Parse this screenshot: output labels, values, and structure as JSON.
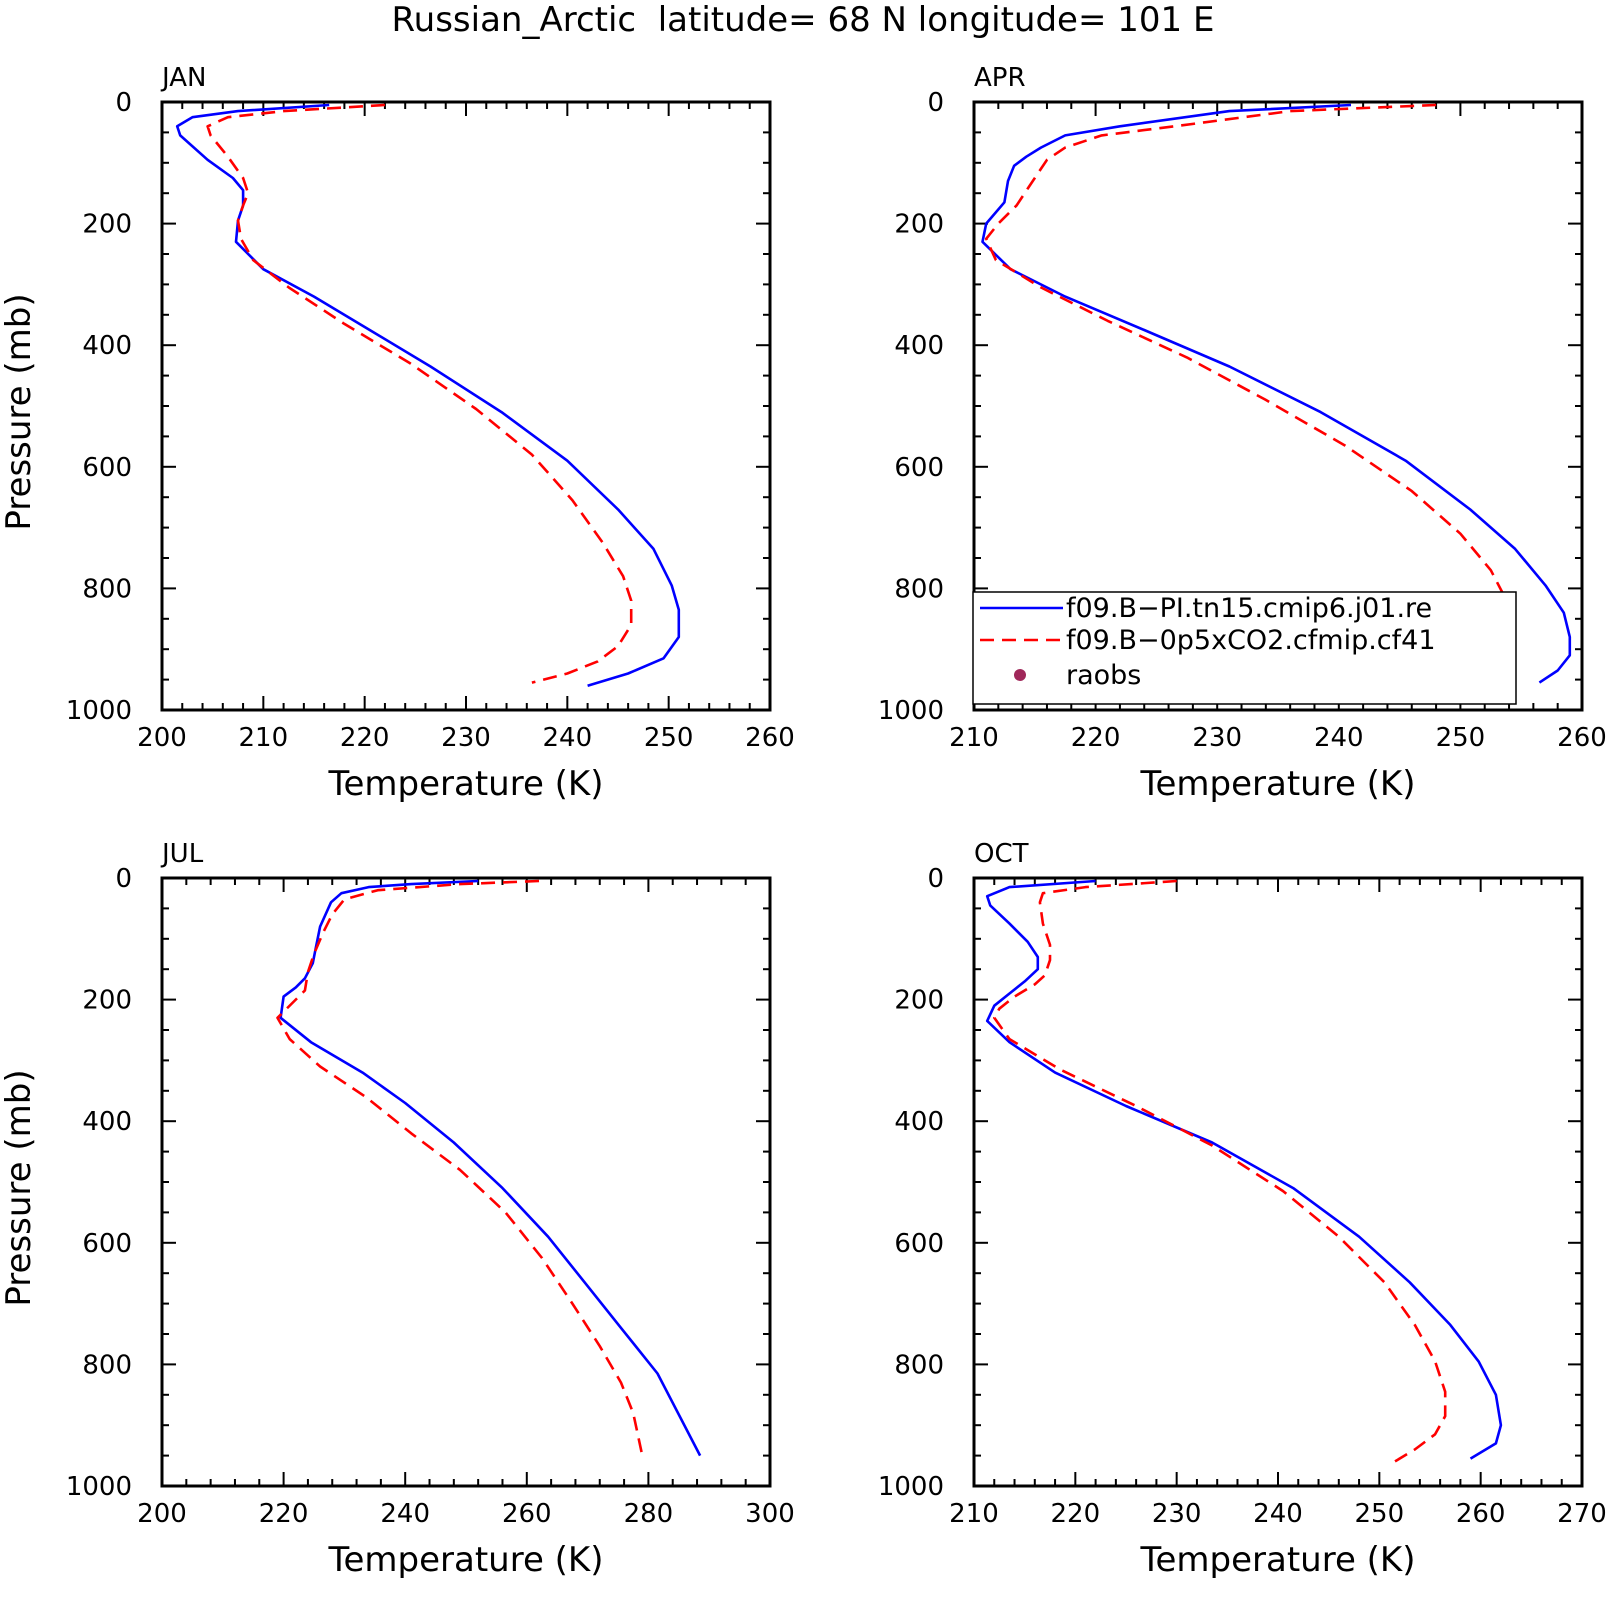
{
  "title": "Russian_Arctic  latitude= 68 N longitude= 101 E",
  "colors": {
    "series_1": "#0000ff",
    "series_2": "#ff0000",
    "raobs": "#a0285a",
    "axes": "#000000"
  },
  "legend": {
    "placement": "inside APR panel, lower-left",
    "entries": [
      {
        "label": "f09.B−PI.tn15.cmip6.j01.re",
        "style": "solid",
        "color": "#0000ff"
      },
      {
        "label": "f09.B−0p5xCO2.cfmip.cf41",
        "style": "dashed",
        "color": "#ff0000"
      },
      {
        "label": "raobs",
        "style": "marker",
        "color": "#a0285a"
      }
    ]
  },
  "chart_data": [
    {
      "type": "line",
      "panel": "JAN",
      "xlabel": "Temperature (K)",
      "ylabel": "Pressure (mb)",
      "xlim": [
        200,
        260
      ],
      "ylim": [
        0,
        1000
      ],
      "y_inverted": true,
      "xticks": [
        200,
        210,
        220,
        230,
        240,
        250,
        260
      ],
      "yticks": [
        0,
        200,
        400,
        600,
        800,
        1000
      ],
      "series": [
        {
          "name": "f09.B−PI.tn15.cmip6.j01.re",
          "style": "solid",
          "x": [
            216.5,
            207.5,
            203.0,
            201.5,
            201.8,
            204.5,
            207.0,
            208.0,
            208.0,
            207.5,
            207.3,
            210.0,
            215.0,
            220.5,
            226.5,
            233.5,
            240.0,
            245.0,
            248.5,
            250.3,
            251.0,
            251.0,
            249.5,
            246.0,
            242.0
          ],
          "y": [
            5,
            15,
            25,
            40,
            55,
            95,
            125,
            145,
            170,
            195,
            230,
            275,
            320,
            375,
            435,
            510,
            590,
            670,
            735,
            795,
            835,
            880,
            915,
            940,
            960
          ]
        },
        {
          "name": "f09.B−0p5xCO2.cfmip.cf41",
          "style": "dashed",
          "x": [
            222.0,
            212.0,
            206.5,
            204.5,
            204.8,
            206.5,
            208.0,
            208.5,
            208.0,
            207.5,
            207.8,
            209.0,
            212.5,
            218.0,
            224.5,
            231.0,
            236.5,
            240.5,
            243.5,
            245.5,
            246.3,
            246.3,
            245.0,
            243.0,
            240.0,
            236.5
          ],
          "y": [
            5,
            15,
            25,
            40,
            55,
            90,
            125,
            150,
            170,
            195,
            225,
            260,
            305,
            365,
            430,
            505,
            580,
            655,
            725,
            780,
            820,
            860,
            895,
            920,
            940,
            955
          ]
        }
      ]
    },
    {
      "type": "line",
      "panel": "APR",
      "xlabel": "Temperature (K)",
      "ylabel": "",
      "xlim": [
        210,
        260
      ],
      "ylim": [
        0,
        1000
      ],
      "y_inverted": true,
      "xticks": [
        210,
        220,
        230,
        240,
        250,
        260
      ],
      "yticks": [
        0,
        200,
        400,
        600,
        800,
        1000
      ],
      "series": [
        {
          "name": "f09.B−PI.tn15.cmip6.j01.re",
          "style": "solid",
          "x": [
            241.0,
            231.0,
            222.0,
            217.5,
            215.5,
            214.3,
            213.3,
            212.8,
            212.5,
            211.0,
            210.7,
            213.0,
            217.5,
            224.0,
            231.0,
            238.5,
            245.5,
            250.8,
            254.5,
            257.0,
            258.5,
            259.0,
            259.0,
            258.0,
            256.5
          ],
          "y": [
            5,
            15,
            40,
            55,
            75,
            90,
            105,
            130,
            165,
            200,
            230,
            275,
            320,
            375,
            435,
            510,
            590,
            670,
            735,
            795,
            840,
            880,
            910,
            935,
            955
          ]
        },
        {
          "name": "f09.B−0p5xCO2.cfmip.cf41",
          "style": "dashed",
          "x": [
            248.0,
            236.0,
            226.5,
            220.5,
            217.5,
            216.0,
            215.5,
            214.5,
            213.5,
            212.0,
            211.0,
            211.8,
            215.5,
            221.0,
            227.5,
            234.0,
            240.5,
            246.0,
            250.0,
            252.5,
            253.8,
            254.3,
            254.2,
            253.5,
            252.5,
            251.0
          ],
          "y": [
            5,
            15,
            40,
            55,
            75,
            95,
            110,
            140,
            170,
            200,
            225,
            260,
            305,
            360,
            420,
            490,
            565,
            640,
            710,
            770,
            820,
            860,
            895,
            920,
            940,
            955
          ]
        }
      ]
    },
    {
      "type": "line",
      "panel": "JUL",
      "xlabel": "Temperature (K)",
      "ylabel": "Pressure (mb)",
      "xlim": [
        200,
        300
      ],
      "ylim": [
        0,
        1000
      ],
      "y_inverted": true,
      "xticks": [
        200,
        220,
        240,
        260,
        280,
        300
      ],
      "yticks": [
        0,
        200,
        400,
        600,
        800,
        1000
      ],
      "series": [
        {
          "name": "f09.B−PI.tn15.cmip6.j01.re",
          "style": "solid",
          "x": [
            252.0,
            241.0,
            234.0,
            229.5,
            227.8,
            226.0,
            225.3,
            224.8,
            223.5,
            222.0,
            220.0,
            219.5,
            224.5,
            233.0,
            240.0,
            248.0,
            256.0,
            263.5,
            269.5,
            275.5,
            281.5,
            288.5
          ],
          "y": [
            5,
            10,
            15,
            25,
            40,
            80,
            115,
            140,
            165,
            180,
            195,
            230,
            270,
            320,
            370,
            435,
            510,
            590,
            665,
            740,
            815,
            950
          ]
        },
        {
          "name": "f09.B−0p5xCO2.cfmip.cf41",
          "style": "dashed",
          "x": [
            262.0,
            249.0,
            235.5,
            230.0,
            228.0,
            226.5,
            225.0,
            224.0,
            223.5,
            219.0,
            221.0,
            226.0,
            233.5,
            241.0,
            249.0,
            256.5,
            262.5,
            267.5,
            272.0,
            275.5,
            277.5,
            279.0
          ],
          "y": [
            5,
            10,
            20,
            35,
            60,
            90,
            125,
            155,
            185,
            230,
            265,
            310,
            360,
            420,
            480,
            550,
            625,
            700,
            770,
            830,
            880,
            950
          ]
        }
      ]
    },
    {
      "type": "line",
      "panel": "OCT",
      "xlabel": "Temperature (K)",
      "ylabel": "",
      "xlim": [
        210,
        270
      ],
      "ylim": [
        0,
        1000
      ],
      "y_inverted": true,
      "xticks": [
        210,
        220,
        230,
        240,
        250,
        260,
        270
      ],
      "yticks": [
        0,
        200,
        400,
        600,
        800,
        1000
      ],
      "series": [
        {
          "name": "f09.B−PI.tn15.cmip6.j01.re",
          "style": "solid",
          "x": [
            222.0,
            213.5,
            211.3,
            211.6,
            213.5,
            215.3,
            216.3,
            216.3,
            215.0,
            213.5,
            212.0,
            211.3,
            213.5,
            218.0,
            225.0,
            233.5,
            241.5,
            248.0,
            253.0,
            257.0,
            259.8,
            261.5,
            262.0,
            261.5,
            259.0
          ],
          "y": [
            5,
            15,
            30,
            45,
            75,
            105,
            130,
            150,
            170,
            190,
            210,
            235,
            270,
            320,
            375,
            435,
            510,
            590,
            665,
            735,
            795,
            850,
            900,
            930,
            955
          ]
        },
        {
          "name": "f09.B−0p5xCO2.cfmip.cf41",
          "style": "dashed",
          "x": [
            230.0,
            221.0,
            216.8,
            216.5,
            216.8,
            217.5,
            217.5,
            217.0,
            216.0,
            214.0,
            212.5,
            212.0,
            213.5,
            218.5,
            226.0,
            233.5,
            240.5,
            246.0,
            250.5,
            253.5,
            255.5,
            256.5,
            256.5,
            255.5,
            253.5,
            251.5
          ],
          "y": [
            5,
            15,
            25,
            40,
            75,
            110,
            135,
            160,
            175,
            195,
            215,
            230,
            265,
            315,
            375,
            440,
            515,
            590,
            665,
            735,
            795,
            845,
            885,
            915,
            940,
            960
          ]
        }
      ]
    }
  ]
}
